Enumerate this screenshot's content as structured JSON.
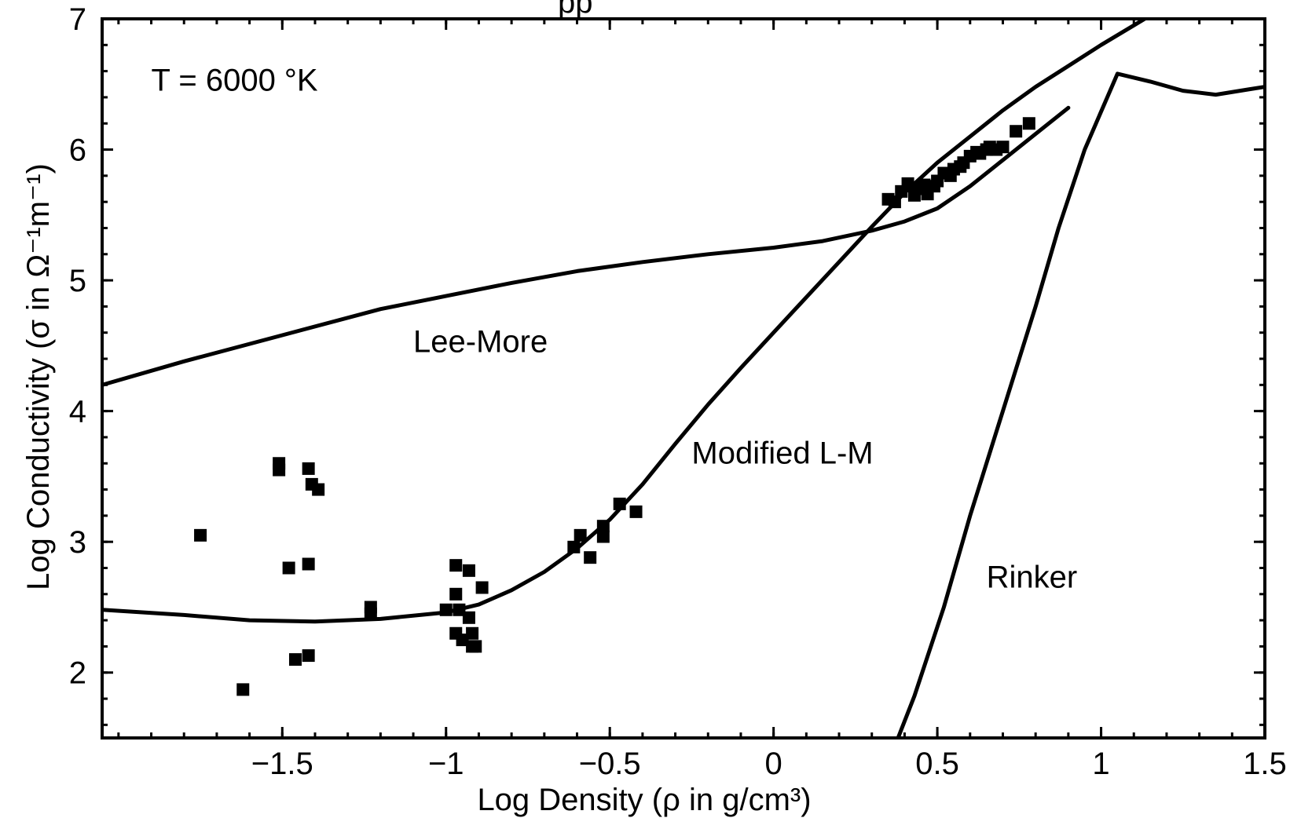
{
  "chart_data": {
    "type": "scatter",
    "title_partial": "pp",
    "xlabel": "Log Density  (ρ in g/cm³)",
    "ylabel": "Log Conductivity  (σ in Ω⁻¹m⁻¹)",
    "xlim": [
      -2.05,
      1.5
    ],
    "ylim": [
      1.5,
      7
    ],
    "x_ticks": [
      -1.5,
      -1,
      -0.5,
      0,
      0.5,
      1,
      1.5
    ],
    "x_tick_labels": [
      "−1.5",
      "−1",
      "−0.5",
      "0",
      "0.5",
      "1",
      "1.5"
    ],
    "y_ticks": [
      2,
      3,
      4,
      5,
      6,
      7
    ],
    "y_tick_labels": [
      "2",
      "3",
      "4",
      "5",
      "6",
      "7"
    ],
    "grid": false,
    "annotations": [
      {
        "id": "temp",
        "text": "T = 6000 °K",
        "x": -1.9,
        "y": 6.45
      },
      {
        "id": "lee-more",
        "text": "Lee-More",
        "x": -1.1,
        "y": 4.45
      },
      {
        "id": "modified",
        "text": "Modified L-M",
        "x": -0.25,
        "y": 3.6
      },
      {
        "id": "rinker",
        "text": "Rinker",
        "x": 0.65,
        "y": 2.65
      }
    ],
    "series": [
      {
        "name": "Lee-More",
        "kind": "line",
        "x": [
          -2.05,
          -1.8,
          -1.5,
          -1.2,
          -1.0,
          -0.8,
          -0.6,
          -0.4,
          -0.2,
          0.0,
          0.15,
          0.3,
          0.4,
          0.5,
          0.6,
          0.7,
          0.8,
          0.9
        ],
        "y": [
          4.2,
          4.38,
          4.58,
          4.78,
          4.88,
          4.98,
          5.07,
          5.14,
          5.2,
          5.25,
          5.3,
          5.38,
          5.45,
          5.55,
          5.72,
          5.92,
          6.12,
          6.32
        ]
      },
      {
        "name": "Modified L-M",
        "kind": "line",
        "x": [
          -2.05,
          -1.8,
          -1.6,
          -1.4,
          -1.2,
          -1.0,
          -0.9,
          -0.8,
          -0.7,
          -0.6,
          -0.5,
          -0.4,
          -0.3,
          -0.2,
          -0.1,
          0.0,
          0.1,
          0.2,
          0.3,
          0.4,
          0.5,
          0.6,
          0.7,
          0.8,
          0.9,
          1.0,
          1.1,
          1.2
        ],
        "y": [
          2.48,
          2.44,
          2.4,
          2.39,
          2.41,
          2.46,
          2.52,
          2.63,
          2.77,
          2.95,
          3.17,
          3.44,
          3.75,
          4.05,
          4.33,
          4.6,
          4.87,
          5.14,
          5.41,
          5.67,
          5.9,
          6.1,
          6.3,
          6.48,
          6.64,
          6.8,
          6.95,
          7.1
        ]
      },
      {
        "name": "Rinker",
        "kind": "line",
        "x": [
          0.38,
          0.43,
          0.52,
          0.6,
          0.7,
          0.8,
          0.87,
          0.95,
          1.05,
          1.15,
          1.25,
          1.35,
          1.45,
          1.5
        ],
        "y": [
          1.5,
          1.82,
          2.5,
          3.2,
          4.0,
          4.8,
          5.4,
          6.0,
          6.58,
          6.52,
          6.45,
          6.42,
          6.46,
          6.48
        ]
      },
      {
        "name": "data",
        "kind": "points",
        "x": [
          -1.75,
          -1.62,
          -1.51,
          -1.51,
          -1.48,
          -1.46,
          -1.42,
          -1.42,
          -1.42,
          -1.41,
          -1.39,
          -1.23,
          -1.23,
          -1.0,
          -0.97,
          -0.97,
          -0.97,
          -0.96,
          -0.95,
          -0.93,
          -0.93,
          -0.92,
          -0.92,
          -0.91,
          -0.89,
          -0.61,
          -0.59,
          -0.56,
          -0.52,
          -0.52,
          -0.47,
          -0.42,
          0.35,
          0.37,
          0.39,
          0.41,
          0.43,
          0.44,
          0.46,
          0.47,
          0.49,
          0.5,
          0.52,
          0.54,
          0.55,
          0.57,
          0.58,
          0.6,
          0.62,
          0.63,
          0.65,
          0.66,
          0.68,
          0.7,
          0.74,
          0.78
        ],
        "y": [
          3.05,
          1.87,
          3.6,
          3.55,
          2.8,
          2.1,
          3.56,
          2.83,
          2.13,
          3.44,
          3.4,
          2.5,
          2.45,
          2.48,
          2.82,
          2.6,
          2.3,
          2.48,
          2.25,
          2.78,
          2.42,
          2.3,
          2.2,
          2.2,
          2.65,
          2.96,
          3.05,
          2.88,
          3.12,
          3.04,
          3.29,
          3.23,
          5.62,
          5.6,
          5.68,
          5.74,
          5.65,
          5.7,
          5.73,
          5.66,
          5.72,
          5.76,
          5.82,
          5.8,
          5.85,
          5.87,
          5.9,
          5.95,
          5.98,
          5.97,
          6.0,
          6.02,
          6.0,
          6.02,
          6.14,
          6.2
        ]
      }
    ]
  }
}
